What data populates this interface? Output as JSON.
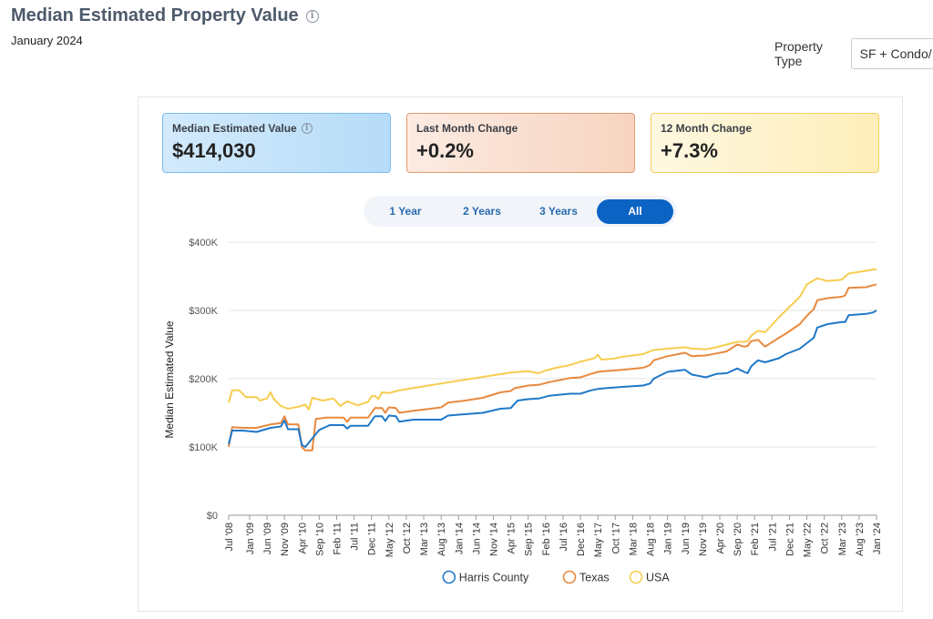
{
  "header": {
    "title": "Median Estimated Property Value",
    "subtitle": "January 2024"
  },
  "filter": {
    "label": "Property Type",
    "value": "SF + Condo/"
  },
  "cards": {
    "median": {
      "label": "Median Estimated Value",
      "value": "$414,030"
    },
    "last_month": {
      "label": "Last Month Change",
      "value": "+0.2%"
    },
    "twelve_month": {
      "label": "12 Month Change",
      "value": "+7.3%"
    }
  },
  "tabs": [
    "1 Year",
    "2 Years",
    "3 Years",
    "All"
  ],
  "active_tab": "All",
  "chart_data": {
    "type": "line",
    "title": "",
    "xlabel": "",
    "ylabel": "Median Estimated Value",
    "ylim": [
      0,
      400000
    ],
    "y_ticks": [
      {
        "value": 0,
        "label": "$0"
      },
      {
        "value": 100000,
        "label": "$100K"
      },
      {
        "value": 200000,
        "label": "$200K"
      },
      {
        "value": 300000,
        "label": "$300K"
      },
      {
        "value": 400000,
        "label": "$400K"
      }
    ],
    "x_start": "2008-07",
    "x_end": "2024-01",
    "x_tick_labels": [
      "Jul '08",
      "Jan '09",
      "Jun '09",
      "Nov '09",
      "Apr '10",
      "Sep '10",
      "Feb '11",
      "Jul '11",
      "Dec '11",
      "May '12",
      "Oct '12",
      "Mar '13",
      "Aug '13",
      "Jan '14",
      "Jun '14",
      "Nov '14",
      "Apr '15",
      "Sep '15",
      "Feb '16",
      "Jul '16",
      "Dec '16",
      "May '17",
      "Oct '17",
      "Mar '18",
      "Aug '18",
      "Jan '19",
      "Jun '19",
      "Nov '19",
      "Apr '20",
      "Sep '20",
      "Feb '21",
      "Jul '21",
      "Dec '21",
      "May '22",
      "Oct '22",
      "Mar '23",
      "Aug '23",
      "Jan '24"
    ],
    "x_tick_months": [
      0,
      6,
      11,
      16,
      21,
      26,
      31,
      36,
      41,
      46,
      51,
      56,
      61,
      66,
      71,
      76,
      81,
      86,
      91,
      96,
      101,
      106,
      111,
      116,
      121,
      126,
      131,
      136,
      141,
      146,
      151,
      156,
      161,
      166,
      171,
      176,
      181,
      186
    ],
    "legend_position": "bottom",
    "series": [
      {
        "name": "Harris County",
        "color": "#1f78c8",
        "points": [
          [
            0,
            104000
          ],
          [
            1,
            124000
          ],
          [
            4,
            124000
          ],
          [
            8,
            122000
          ],
          [
            12,
            128000
          ],
          [
            15,
            130000
          ],
          [
            16,
            139000
          ],
          [
            17,
            126000
          ],
          [
            20,
            126000
          ],
          [
            21,
            103000
          ],
          [
            22,
            100000
          ],
          [
            26,
            125000
          ],
          [
            29,
            132000
          ],
          [
            33,
            132000
          ],
          [
            34,
            127000
          ],
          [
            35,
            131000
          ],
          [
            40,
            131000
          ],
          [
            42,
            145000
          ],
          [
            44,
            145000
          ],
          [
            45,
            138000
          ],
          [
            46,
            146000
          ],
          [
            48,
            145000
          ],
          [
            49,
            137000
          ],
          [
            53,
            140000
          ],
          [
            58,
            140000
          ],
          [
            61,
            140000
          ],
          [
            63,
            146000
          ],
          [
            68,
            148000
          ],
          [
            73,
            150000
          ],
          [
            78,
            156000
          ],
          [
            81,
            157000
          ],
          [
            82,
            163000
          ],
          [
            83,
            168000
          ],
          [
            86,
            170000
          ],
          [
            89,
            171000
          ],
          [
            92,
            175000
          ],
          [
            98,
            178000
          ],
          [
            101,
            178000
          ],
          [
            104,
            183000
          ],
          [
            106,
            185000
          ],
          [
            108,
            186000
          ],
          [
            113,
            188000
          ],
          [
            119,
            190000
          ],
          [
            121,
            193000
          ],
          [
            122,
            200000
          ],
          [
            126,
            210000
          ],
          [
            131,
            213000
          ],
          [
            133,
            206000
          ],
          [
            137,
            202000
          ],
          [
            140,
            207000
          ],
          [
            143,
            208000
          ],
          [
            146,
            215000
          ],
          [
            148,
            210000
          ],
          [
            149,
            208000
          ],
          [
            150,
            218000
          ],
          [
            152,
            227000
          ],
          [
            154,
            224000
          ],
          [
            158,
            230000
          ],
          [
            160,
            236000
          ],
          [
            164,
            244000
          ],
          [
            166,
            252000
          ],
          [
            168,
            260000
          ],
          [
            169,
            275000
          ],
          [
            172,
            280000
          ],
          [
            176,
            283000
          ],
          [
            177,
            283000
          ],
          [
            178,
            293000
          ],
          [
            183,
            295000
          ],
          [
            185,
            297000
          ],
          [
            186,
            300000
          ]
        ]
      },
      {
        "name": "Texas",
        "color": "#e8893e",
        "points": [
          [
            0,
            100000
          ],
          [
            1,
            129000
          ],
          [
            4,
            128000
          ],
          [
            8,
            128000
          ],
          [
            12,
            133000
          ],
          [
            15,
            135000
          ],
          [
            16,
            145000
          ],
          [
            17,
            133000
          ],
          [
            20,
            133000
          ],
          [
            21,
            100000
          ],
          [
            22,
            95000
          ],
          [
            24,
            95000
          ],
          [
            25,
            141000
          ],
          [
            28,
            143000
          ],
          [
            33,
            143000
          ],
          [
            34,
            137000
          ],
          [
            35,
            143000
          ],
          [
            40,
            143000
          ],
          [
            42,
            157000
          ],
          [
            44,
            157000
          ],
          [
            45,
            150000
          ],
          [
            46,
            158000
          ],
          [
            48,
            157000
          ],
          [
            49,
            150000
          ],
          [
            53,
            153000
          ],
          [
            58,
            156000
          ],
          [
            61,
            158000
          ],
          [
            63,
            165000
          ],
          [
            68,
            168000
          ],
          [
            73,
            172000
          ],
          [
            78,
            180000
          ],
          [
            81,
            182000
          ],
          [
            82,
            186000
          ],
          [
            86,
            190000
          ],
          [
            89,
            191000
          ],
          [
            92,
            195000
          ],
          [
            98,
            201000
          ],
          [
            101,
            202000
          ],
          [
            104,
            207000
          ],
          [
            106,
            210000
          ],
          [
            108,
            211000
          ],
          [
            113,
            213000
          ],
          [
            119,
            216000
          ],
          [
            121,
            220000
          ],
          [
            122,
            227000
          ],
          [
            126,
            233000
          ],
          [
            131,
            238000
          ],
          [
            133,
            233000
          ],
          [
            137,
            234000
          ],
          [
            140,
            237000
          ],
          [
            143,
            240000
          ],
          [
            146,
            250000
          ],
          [
            148,
            247000
          ],
          [
            149,
            248000
          ],
          [
            150,
            255000
          ],
          [
            152,
            257000
          ],
          [
            154,
            247000
          ],
          [
            158,
            260000
          ],
          [
            160,
            266000
          ],
          [
            164,
            280000
          ],
          [
            166,
            292000
          ],
          [
            168,
            302000
          ],
          [
            169,
            315000
          ],
          [
            172,
            318000
          ],
          [
            176,
            320000
          ],
          [
            177,
            322000
          ],
          [
            178,
            333000
          ],
          [
            183,
            334000
          ],
          [
            185,
            337000
          ],
          [
            186,
            338000
          ]
        ]
      },
      {
        "name": "USA",
        "color": "#f6cd4f",
        "points": [
          [
            0,
            165000
          ],
          [
            1,
            183000
          ],
          [
            3,
            183000
          ],
          [
            5,
            173000
          ],
          [
            8,
            173000
          ],
          [
            9,
            168000
          ],
          [
            11,
            171000
          ],
          [
            12,
            180000
          ],
          [
            13,
            170000
          ],
          [
            15,
            160000
          ],
          [
            17,
            156000
          ],
          [
            20,
            159000
          ],
          [
            22,
            162000
          ],
          [
            23,
            155000
          ],
          [
            24,
            172000
          ],
          [
            27,
            168000
          ],
          [
            30,
            171000
          ],
          [
            31,
            166000
          ],
          [
            32,
            160000
          ],
          [
            34,
            167000
          ],
          [
            37,
            161000
          ],
          [
            40,
            166000
          ],
          [
            41,
            174000
          ],
          [
            42,
            175000
          ],
          [
            43,
            170000
          ],
          [
            44,
            180000
          ],
          [
            46,
            179000
          ],
          [
            49,
            183000
          ],
          [
            55,
            188000
          ],
          [
            61,
            193000
          ],
          [
            66,
            197000
          ],
          [
            71,
            201000
          ],
          [
            76,
            205000
          ],
          [
            81,
            209000
          ],
          [
            86,
            211000
          ],
          [
            89,
            208000
          ],
          [
            91,
            212000
          ],
          [
            94,
            216000
          ],
          [
            98,
            220000
          ],
          [
            101,
            225000
          ],
          [
            105,
            230000
          ],
          [
            106,
            235000
          ],
          [
            107,
            228000
          ],
          [
            110,
            229000
          ],
          [
            113,
            232000
          ],
          [
            119,
            236000
          ],
          [
            121,
            240000
          ],
          [
            122,
            242000
          ],
          [
            126,
            244000
          ],
          [
            131,
            246000
          ],
          [
            133,
            244000
          ],
          [
            137,
            243000
          ],
          [
            140,
            246000
          ],
          [
            143,
            250000
          ],
          [
            146,
            254000
          ],
          [
            148,
            254000
          ],
          [
            149,
            255000
          ],
          [
            150,
            263000
          ],
          [
            152,
            270000
          ],
          [
            154,
            268000
          ],
          [
            158,
            290000
          ],
          [
            160,
            300000
          ],
          [
            164,
            320000
          ],
          [
            166,
            338000
          ],
          [
            168,
            344000
          ],
          [
            169,
            347000
          ],
          [
            172,
            343000
          ],
          [
            176,
            345000
          ],
          [
            178,
            354000
          ],
          [
            183,
            358000
          ],
          [
            185,
            360000
          ],
          [
            186,
            360000
          ]
        ]
      }
    ]
  }
}
